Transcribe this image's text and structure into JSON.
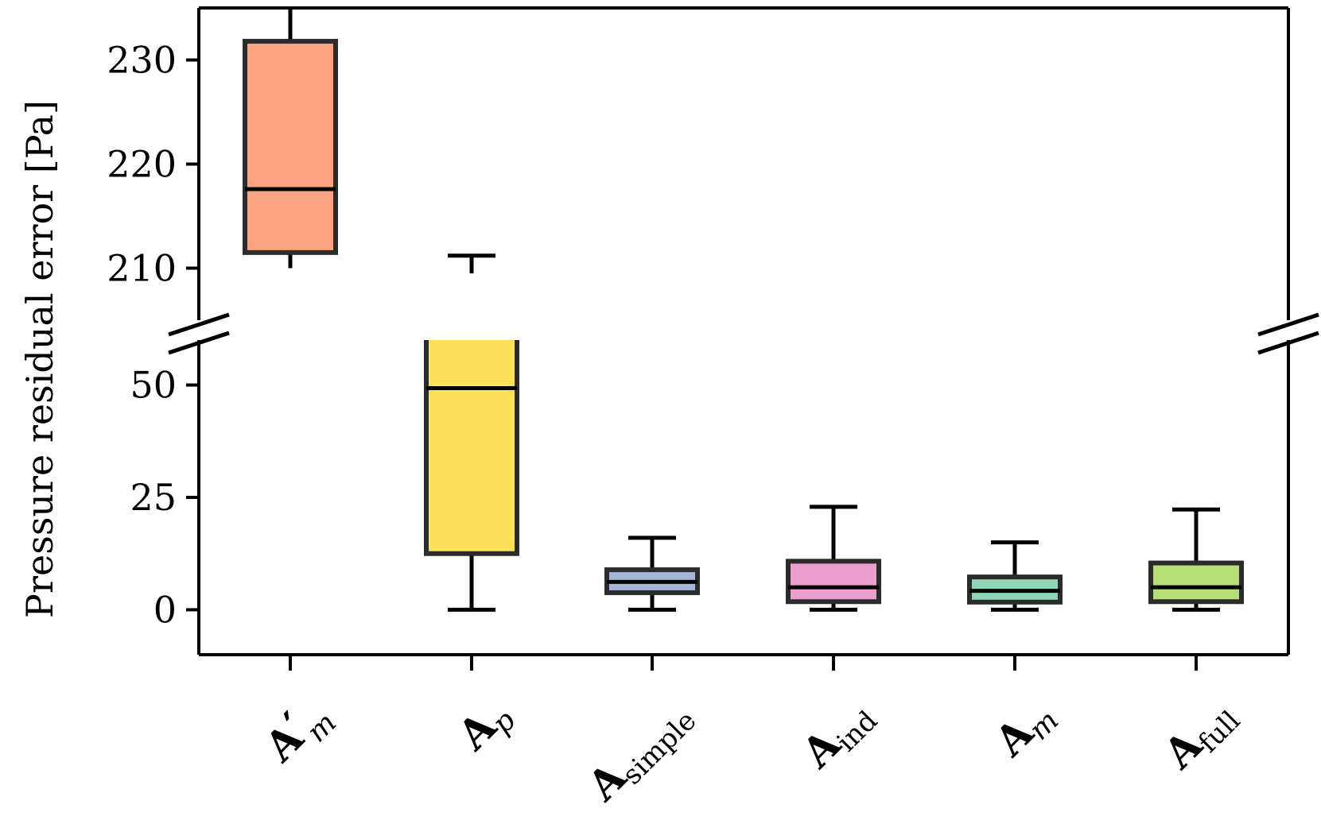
{
  "chart_data": {
    "type": "box",
    "ylabel": "Pressure residual error [Pa]",
    "axis_break": true,
    "ylim_upper": [
      205,
      235
    ],
    "ylim_lower": [
      -10,
      60
    ],
    "yticks_upper": [
      "210",
      "220",
      "230"
    ],
    "yticks_lower": [
      "0",
      "25",
      "50"
    ],
    "colors": {
      "Am_prime": "#fca47f",
      "Ap": "#fde05a",
      "Asimple": "#a5b6d9",
      "Aind": "#ec9fce",
      "Am": "#8fd5b6",
      "Afull": "#b6df78"
    },
    "categories": [
      {
        "id": "Am_prime",
        "main": "A",
        "sub": "m",
        "sub_italic": true,
        "prime": "′",
        "whisker_low": 210,
        "q1": 211.5,
        "median": 217.6,
        "q3": 231.8,
        "whisker_high": 235,
        "panel": "upper"
      },
      {
        "id": "Ap",
        "main": "A",
        "sub": "p",
        "sub_italic": true,
        "prime": "",
        "whisker_low": 0,
        "q1": 12.5,
        "median": 49.3,
        "q3": 209.5,
        "whisker_high": 211.2,
        "panel": "both"
      },
      {
        "id": "Asimple",
        "main": "A",
        "sub": "simple",
        "sub_italic": false,
        "prime": "",
        "whisker_low": 0,
        "q1": 3.8,
        "median": 6.2,
        "q3": 8.9,
        "whisker_high": 16.0,
        "panel": "lower"
      },
      {
        "id": "Aind",
        "main": "A",
        "sub": "ind",
        "sub_italic": false,
        "prime": "",
        "whisker_low": 0,
        "q1": 1.8,
        "median": 5.0,
        "q3": 10.8,
        "whisker_high": 22.9,
        "panel": "lower"
      },
      {
        "id": "Am",
        "main": "A",
        "sub": "m",
        "sub_italic": true,
        "prime": "",
        "whisker_low": 0,
        "q1": 1.7,
        "median": 4.2,
        "q3": 7.3,
        "whisker_high": 15.0,
        "panel": "lower"
      },
      {
        "id": "Afull",
        "main": "A",
        "sub": "full",
        "sub_italic": false,
        "prime": "",
        "whisker_low": 0,
        "q1": 1.8,
        "median": 5.0,
        "q3": 10.4,
        "whisker_high": 22.3,
        "panel": "lower"
      }
    ]
  }
}
